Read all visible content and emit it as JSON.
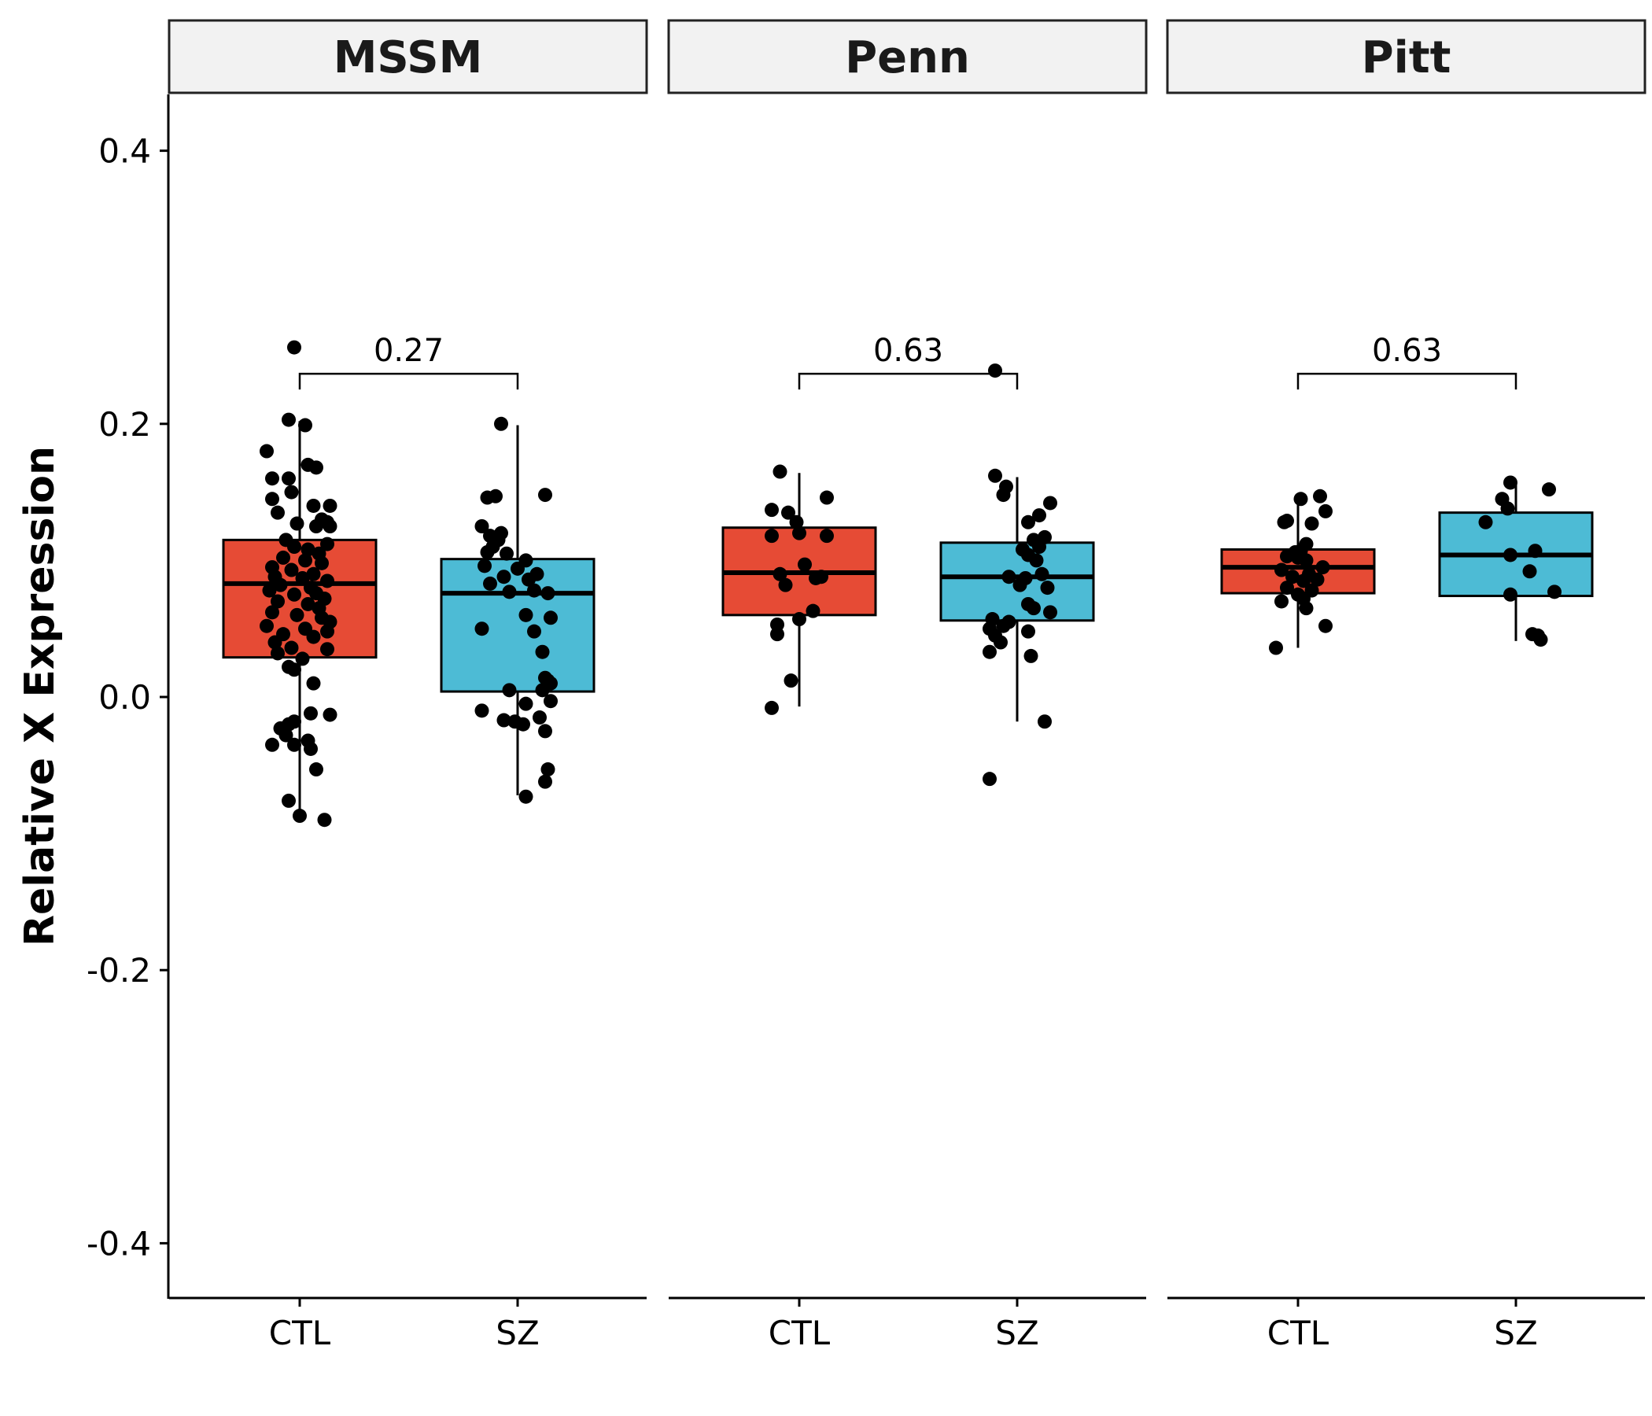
{
  "chart_data": {
    "type": "box",
    "ylabel": "Relative X Expression",
    "xlabel": "",
    "ylim": [
      -0.44,
      0.44
    ],
    "y_ticks": [
      {
        "value": 0.4,
        "label": "0.4"
      },
      {
        "value": 0.2,
        "label": "0.2"
      },
      {
        "value": 0.0,
        "label": "0.0"
      },
      {
        "value": -0.2,
        "label": "-0.2"
      },
      {
        "value": -0.4,
        "label": "-0.4"
      }
    ],
    "categories": [
      "CTL",
      "SZ"
    ],
    "colors": {
      "CTL": "#E64B35",
      "SZ": "#4DBBD5",
      "strip_fill": "#F2F2F2",
      "points": "#000000"
    },
    "panels": [
      {
        "name": "MSSM",
        "comparison_label": "0.27",
        "bracket_y": 0.273,
        "boxes": [
          {
            "category": "CTL",
            "whisker_low": -0.085,
            "q1": 0.029,
            "median": 0.083,
            "q3": 0.115,
            "whisker_high": 0.202,
            "points": [
              [
                -0.02,
                0.256
              ],
              [
                -0.04,
                0.203
              ],
              [
                0.02,
                0.199
              ],
              [
                -0.12,
                0.18
              ],
              [
                0.03,
                0.17
              ],
              [
                0.06,
                0.168
              ],
              [
                -0.1,
                0.16
              ],
              [
                -0.04,
                0.16
              ],
              [
                -0.03,
                0.15
              ],
              [
                -0.1,
                0.145
              ],
              [
                0.05,
                0.14
              ],
              [
                0.11,
                0.14
              ],
              [
                -0.08,
                0.135
              ],
              [
                0.08,
                0.13
              ],
              [
                0.1,
                0.128
              ],
              [
                -0.01,
                0.127
              ],
              [
                0.06,
                0.125
              ],
              [
                0.11,
                0.125
              ],
              [
                -0.05,
                0.115
              ],
              [
                0.1,
                0.112
              ],
              [
                -0.02,
                0.11
              ],
              [
                0.03,
                0.108
              ],
              [
                0.07,
                0.105
              ],
              [
                -0.06,
                0.102
              ],
              [
                0.02,
                0.1
              ],
              [
                0.08,
                0.098
              ],
              [
                -0.1,
                0.095
              ],
              [
                -0.03,
                0.093
              ],
              [
                0.05,
                0.09
              ],
              [
                -0.09,
                0.088
              ],
              [
                0.01,
                0.087
              ],
              [
                0.1,
                0.085
              ],
              [
                -0.07,
                0.082
              ],
              [
                0.04,
                0.08
              ],
              [
                -0.11,
                0.078
              ],
              [
                0.06,
                0.076
              ],
              [
                -0.02,
                0.075
              ],
              [
                0.09,
                0.072
              ],
              [
                -0.08,
                0.07
              ],
              [
                0.03,
                0.068
              ],
              [
                0.07,
                0.065
              ],
              [
                -0.1,
                0.062
              ],
              [
                -0.01,
                0.06
              ],
              [
                0.08,
                0.058
              ],
              [
                0.11,
                0.055
              ],
              [
                -0.12,
                0.052
              ],
              [
                0.02,
                0.05
              ],
              [
                0.1,
                0.048
              ],
              [
                -0.06,
                0.046
              ],
              [
                0.05,
                0.044
              ],
              [
                -0.09,
                0.04
              ],
              [
                -0.03,
                0.036
              ],
              [
                0.1,
                0.035
              ],
              [
                -0.08,
                0.032
              ],
              [
                0.01,
                0.028
              ],
              [
                -0.04,
                0.022
              ],
              [
                -0.02,
                0.02
              ],
              [
                0.05,
                0.01
              ],
              [
                0.04,
                -0.012
              ],
              [
                0.11,
                -0.013
              ],
              [
                -0.02,
                -0.018
              ],
              [
                -0.04,
                -0.02
              ],
              [
                -0.07,
                -0.023
              ],
              [
                -0.05,
                -0.028
              ],
              [
                0.03,
                -0.032
              ],
              [
                -0.02,
                -0.035
              ],
              [
                -0.1,
                -0.035
              ],
              [
                0.04,
                -0.038
              ],
              [
                0.06,
                -0.053
              ],
              [
                -0.04,
                -0.076
              ],
              [
                0.0,
                -0.087
              ],
              [
                0.09,
                -0.09
              ]
            ]
          },
          {
            "category": "SZ",
            "whisker_low": -0.072,
            "q1": 0.004,
            "median": 0.076,
            "q3": 0.101,
            "whisker_high": 0.199,
            "points": [
              [
                -0.06,
                0.2
              ],
              [
                0.1,
                0.148
              ],
              [
                -0.08,
                0.147
              ],
              [
                -0.11,
                0.146
              ],
              [
                -0.13,
                0.125
              ],
              [
                -0.06,
                0.12
              ],
              [
                -0.1,
                0.118
              ],
              [
                -0.07,
                0.115
              ],
              [
                -0.09,
                0.11
              ],
              [
                -0.11,
                0.106
              ],
              [
                -0.04,
                0.105
              ],
              [
                0.03,
                0.1
              ],
              [
                -0.12,
                0.096
              ],
              [
                0.0,
                0.094
              ],
              [
                0.07,
                0.09
              ],
              [
                -0.05,
                0.088
              ],
              [
                0.04,
                0.086
              ],
              [
                -0.1,
                0.083
              ],
              [
                0.06,
                0.078
              ],
              [
                -0.03,
                0.077
              ],
              [
                0.11,
                0.076
              ],
              [
                0.03,
                0.06
              ],
              [
                0.12,
                0.058
              ],
              [
                -0.13,
                0.05
              ],
              [
                0.06,
                0.048
              ],
              [
                0.09,
                0.033
              ],
              [
                0.1,
                0.014
              ],
              [
                0.11,
                0.012
              ],
              [
                0.12,
                0.01
              ],
              [
                -0.03,
                0.005
              ],
              [
                0.09,
                0.005
              ],
              [
                0.03,
                -0.005
              ],
              [
                0.12,
                -0.003
              ],
              [
                -0.13,
                -0.01
              ],
              [
                0.08,
                -0.015
              ],
              [
                -0.05,
                -0.017
              ],
              [
                -0.01,
                -0.018
              ],
              [
                0.02,
                -0.02
              ],
              [
                0.1,
                -0.025
              ],
              [
                0.11,
                -0.053
              ],
              [
                0.1,
                -0.062
              ],
              [
                0.03,
                -0.073
              ]
            ]
          }
        ]
      },
      {
        "name": "Penn",
        "comparison_label": "0.63",
        "bracket_y": 0.273,
        "boxes": [
          {
            "category": "CTL",
            "whisker_low": -0.007,
            "q1": 0.06,
            "median": 0.091,
            "q3": 0.124,
            "whisker_high": 0.164,
            "points": [
              [
                -0.07,
                0.165
              ],
              [
                0.1,
                0.146
              ],
              [
                -0.1,
                0.137
              ],
              [
                -0.04,
                0.135
              ],
              [
                -0.01,
                0.128
              ],
              [
                0.0,
                0.12
              ],
              [
                -0.1,
                0.118
              ],
              [
                0.1,
                0.118
              ],
              [
                0.02,
                0.097
              ],
              [
                -0.07,
                0.09
              ],
              [
                0.08,
                0.088
              ],
              [
                0.06,
                0.087
              ],
              [
                -0.05,
                0.082
              ],
              [
                0.05,
                0.063
              ],
              [
                0.0,
                0.057
              ],
              [
                -0.08,
                0.053
              ],
              [
                -0.08,
                0.046
              ],
              [
                -0.03,
                0.012
              ],
              [
                -0.1,
                -0.008
              ]
            ]
          },
          {
            "category": "SZ",
            "whisker_low": -0.018,
            "q1": 0.056,
            "median": 0.088,
            "q3": 0.113,
            "whisker_high": 0.161,
            "points": [
              [
                -0.08,
                0.239
              ],
              [
                -0.08,
                0.162
              ],
              [
                -0.04,
                0.154
              ],
              [
                -0.05,
                0.148
              ],
              [
                0.12,
                0.142
              ],
              [
                0.08,
                0.133
              ],
              [
                0.04,
                0.128
              ],
              [
                0.1,
                0.117
              ],
              [
                0.06,
                0.115
              ],
              [
                0.08,
                0.11
              ],
              [
                0.02,
                0.108
              ],
              [
                0.04,
                0.104
              ],
              [
                0.07,
                0.1
              ],
              [
                0.09,
                0.09
              ],
              [
                -0.03,
                0.088
              ],
              [
                0.03,
                0.087
              ],
              [
                0.01,
                0.082
              ],
              [
                0.11,
                0.08
              ],
              [
                0.04,
                0.068
              ],
              [
                0.06,
                0.065
              ],
              [
                0.12,
                0.062
              ],
              [
                -0.09,
                0.057
              ],
              [
                -0.03,
                0.055
              ],
              [
                -0.05,
                0.052
              ],
              [
                -0.1,
                0.05
              ],
              [
                0.04,
                0.048
              ],
              [
                -0.08,
                0.045
              ],
              [
                -0.06,
                0.04
              ],
              [
                -0.1,
                0.033
              ],
              [
                0.05,
                0.03
              ],
              [
                0.1,
                -0.018
              ],
              [
                -0.1,
                -0.06
              ]
            ]
          }
        ]
      },
      {
        "name": "Pitt",
        "comparison_label": "0.63",
        "bracket_y": 0.273,
        "boxes": [
          {
            "category": "CTL",
            "whisker_low": 0.036,
            "q1": 0.076,
            "median": 0.095,
            "q3": 0.108,
            "whisker_high": 0.142,
            "points": [
              [
                0.01,
                0.145
              ],
              [
                0.08,
                0.147
              ],
              [
                0.1,
                0.136
              ],
              [
                -0.04,
                0.129
              ],
              [
                0.05,
                0.127
              ],
              [
                -0.05,
                0.128
              ],
              [
                0.03,
                0.112
              ],
              [
                0.01,
                0.107
              ],
              [
                -0.01,
                0.106
              ],
              [
                -0.04,
                0.103
              ],
              [
                0.0,
                0.102
              ],
              [
                0.03,
                0.1
              ],
              [
                0.09,
                0.095
              ],
              [
                -0.06,
                0.093
              ],
              [
                0.04,
                0.09
              ],
              [
                -0.02,
                0.088
              ],
              [
                0.07,
                0.086
              ],
              [
                0.02,
                0.085
              ],
              [
                -0.04,
                0.08
              ],
              [
                0.05,
                0.078
              ],
              [
                0.0,
                0.075
              ],
              [
                0.02,
                0.072
              ],
              [
                -0.06,
                0.07
              ],
              [
                0.03,
                0.065
              ],
              [
                0.1,
                0.052
              ],
              [
                -0.08,
                0.036
              ]
            ]
          },
          {
            "category": "SZ",
            "whisker_low": 0.041,
            "q1": 0.074,
            "median": 0.104,
            "q3": 0.135,
            "whisker_high": 0.158,
            "points": [
              [
                -0.02,
                0.157
              ],
              [
                0.12,
                0.152
              ],
              [
                -0.05,
                0.145
              ],
              [
                -0.03,
                0.138
              ],
              [
                -0.11,
                0.128
              ],
              [
                0.07,
                0.107
              ],
              [
                -0.02,
                0.104
              ],
              [
                0.05,
                0.092
              ],
              [
                -0.02,
                0.075
              ],
              [
                0.14,
                0.077
              ],
              [
                0.06,
                0.046
              ],
              [
                0.08,
                0.045
              ],
              [
                0.09,
                0.042
              ]
            ]
          }
        ]
      }
    ]
  }
}
